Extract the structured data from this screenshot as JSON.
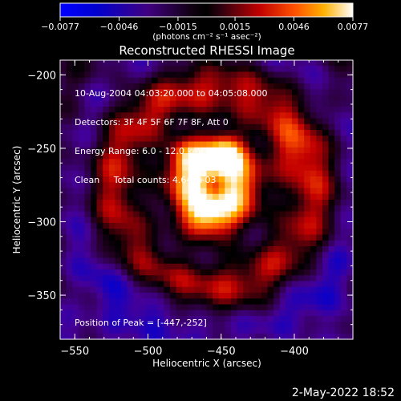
{
  "footer_date": "2-May-2022 18:52",
  "chart_data": {
    "type": "heatmap",
    "title": "Reconstructed RHESSI Image",
    "xlabel": "Heliocentric X (arcsec)",
    "ylabel": "Heliocentric Y (arcsec)",
    "xlim": [
      -560,
      -360
    ],
    "ylim": [
      -380,
      -190
    ],
    "x_ticks": [
      -550,
      -500,
      -450,
      -400
    ],
    "y_ticks": [
      -200,
      -250,
      -300,
      -350
    ],
    "x_tick_labels": [
      "−550",
      "−500",
      "−450",
      "−400"
    ],
    "y_tick_labels": [
      "−200",
      "−250",
      "−300",
      "−350"
    ],
    "colorbar": {
      "min": -0.0077,
      "max": 0.0077,
      "ticks": [
        -0.0077,
        -0.0046,
        -0.0015,
        0.0015,
        0.0046,
        0.0077
      ],
      "tick_labels": [
        "−0.0077",
        "−0.0046",
        "−0.0015",
        "0.0015",
        "0.0046",
        "0.0077"
      ],
      "units_label": "(photons cm⁻² s⁻¹ asec⁻²)"
    },
    "annotations": [
      "10-Aug-2004 04:03:20.000 to 04:05:08.000",
      "Detectors: 3F 4F 5F 6F 7F 8F, Att 0",
      "Energy Range: 6.0 - 12.0 keV",
      "Clean     Total counts: 4.64E+03"
    ],
    "peak_label": "Position of Peak = [-447,-252]",
    "peak": [
      -447,
      -252
    ],
    "grid": false
  }
}
